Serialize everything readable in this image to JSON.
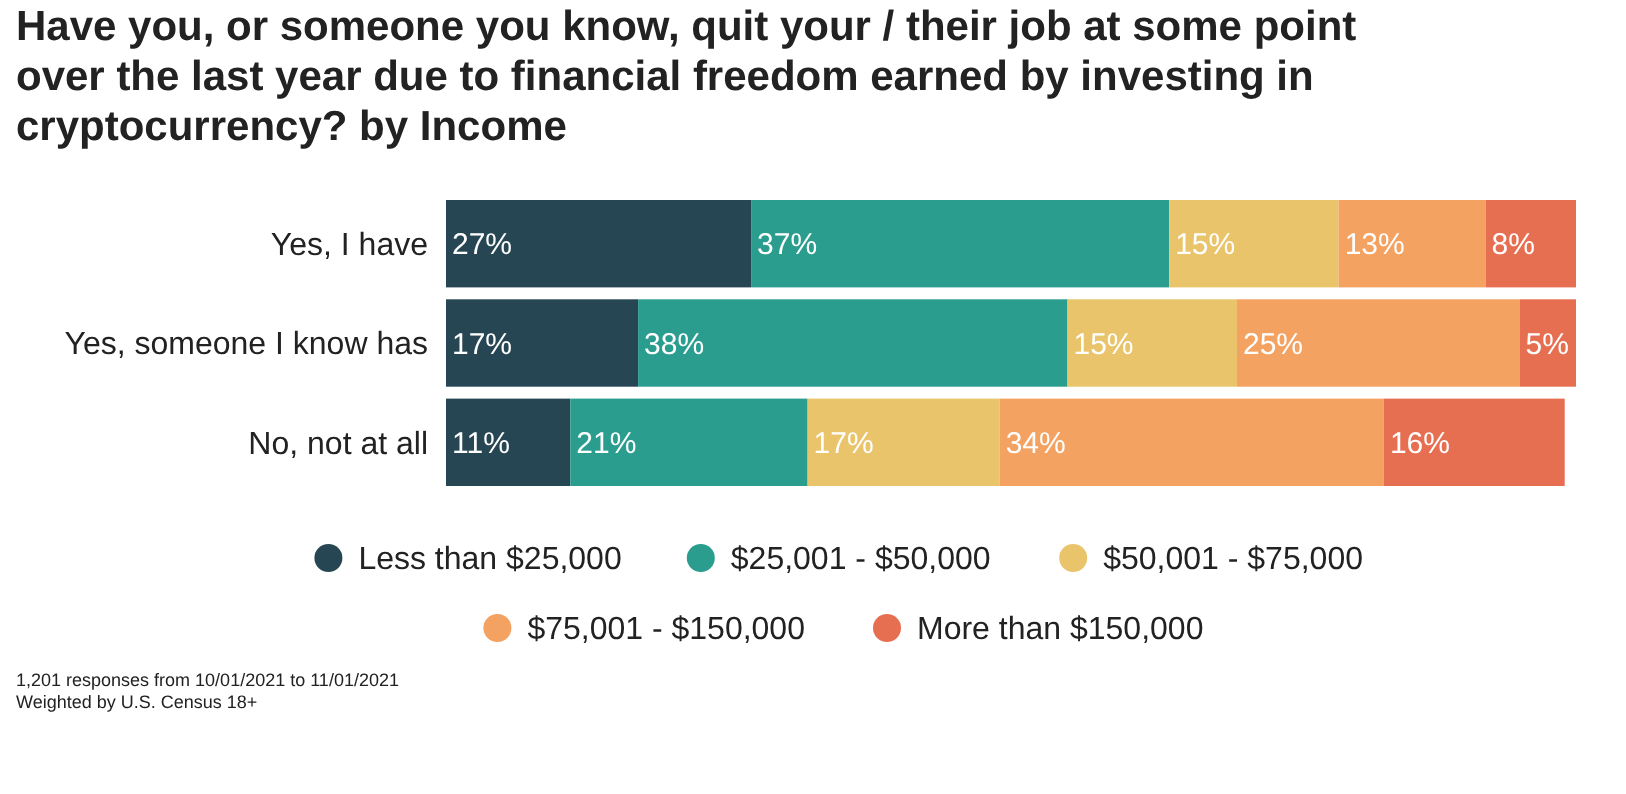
{
  "chart_data": {
    "type": "bar",
    "orientation": "horizontal",
    "stacked": true,
    "legend": "bottom",
    "title": "Have you, or someone you know, quit your / their job at some point over the last year due to financial freedom earned by investing in cryptocurrency? by Income",
    "categories": [
      "Yes, I have",
      "Yes, someone I know has",
      "No, not at all"
    ],
    "series": [
      {
        "name": "Less than $25,000",
        "color": "#264653",
        "values": [
          27,
          17,
          11
        ],
        "value_labels": [
          "27%",
          "17%",
          "11%"
        ]
      },
      {
        "name": "$25,001 - $50,000",
        "color": "#2a9d8f",
        "values": [
          37,
          38,
          21
        ],
        "value_labels": [
          "37%",
          "38%",
          "21%"
        ]
      },
      {
        "name": "$50,001 - $75,000",
        "color": "#e9c46a",
        "values": [
          15,
          15,
          17
        ],
        "value_labels": [
          "15%",
          "15%",
          "17%"
        ]
      },
      {
        "name": "$75,001 - $150,000",
        "color": "#f4a261",
        "values": [
          13,
          25,
          34
        ],
        "value_labels": [
          "13%",
          "25%",
          "34%"
        ]
      },
      {
        "name": "More than $150,000",
        "color": "#e76f51",
        "values": [
          8,
          5,
          16
        ],
        "value_labels": [
          "8%",
          "5%",
          "16%"
        ]
      }
    ],
    "annotations": [
      "1,201 responses from 10/01/2021 to 11/01/2021",
      "Weighted by U.S. Census 18+"
    ]
  }
}
